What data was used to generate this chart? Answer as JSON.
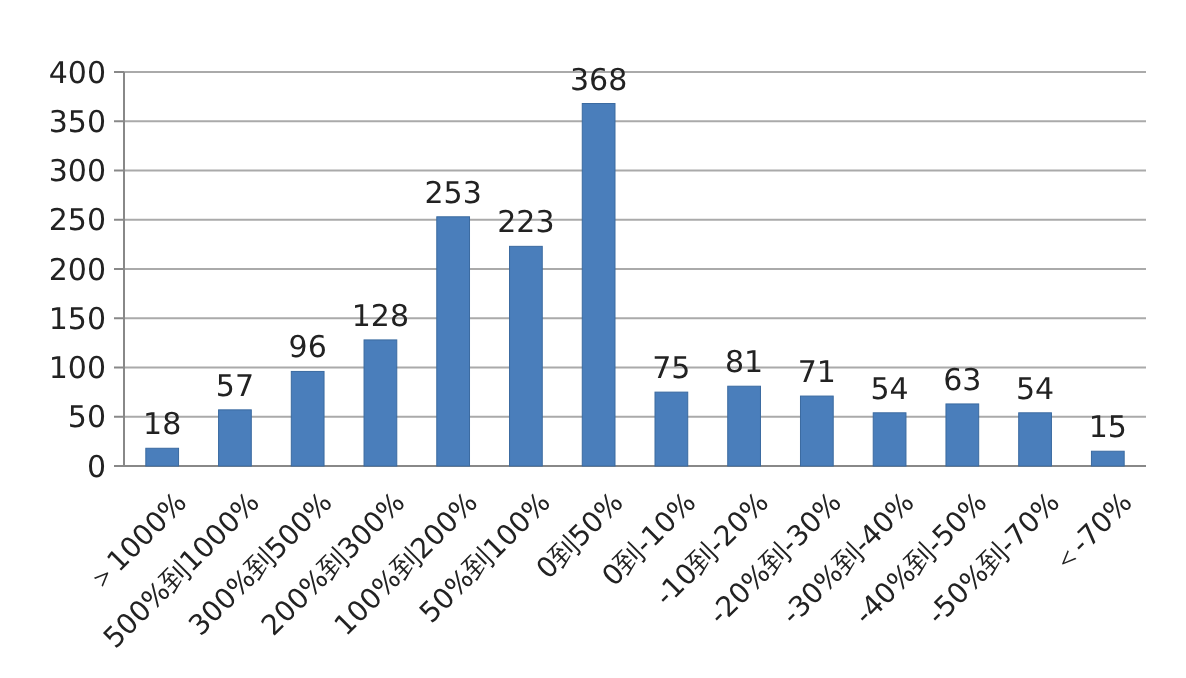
{
  "chart_data": {
    "type": "bar",
    "categories": [
      "＞1000%",
      "500%到1000%",
      "300%到500%",
      "200%到300%",
      "100%到200%",
      "50%到100%",
      "0到50%",
      "0到-10%",
      "-10到-20%",
      "-20%到-30%",
      "-30%到-40%",
      "-40%到-50%",
      "-50%到-70%",
      "＜-70%"
    ],
    "values": [
      18,
      57,
      96,
      128,
      253,
      223,
      368,
      75,
      81,
      71,
      54,
      63,
      54,
      15
    ],
    "color": "#4a7ebb",
    "ylim": [
      0,
      400
    ],
    "yticks": [
      0,
      50,
      100,
      150,
      200,
      250,
      300,
      350,
      400
    ],
    "grid": "y",
    "data_labels": true
  }
}
